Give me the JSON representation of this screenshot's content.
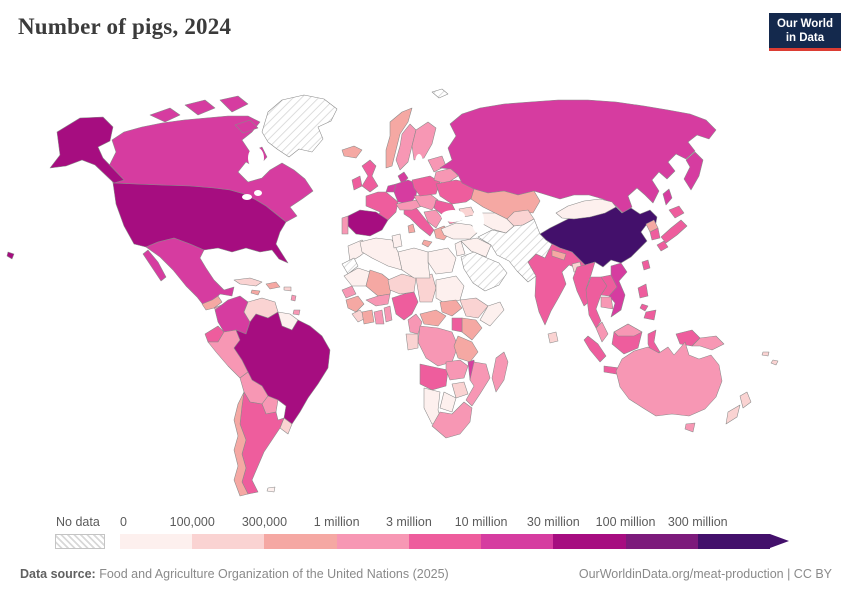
{
  "title": "Number of pigs, 2024",
  "logo": {
    "line1": "Our World",
    "line2": "in Data"
  },
  "legend": {
    "no_data_label": "No data",
    "ticks": [
      "0",
      "100,000",
      "300,000",
      "1 million",
      "3 million",
      "10 million",
      "30 million",
      "100 million",
      "300 million"
    ]
  },
  "footer": {
    "source_prefix": "Data source:",
    "source_text": " Food and Agriculture Organization of the United Nations (2025)",
    "link_text": "OurWorldinData.org/meat-production | CC BY"
  },
  "chart_data": {
    "type": "heatmap",
    "subtype": "world-choropleth",
    "title": "Number of pigs, 2024",
    "legend_position": "bottom",
    "bins": [
      {
        "key": "b1",
        "range": "0–100,000",
        "color": "#fdf0ee"
      },
      {
        "key": "b2",
        "range": "100,000–300,000",
        "color": "#fad3d2"
      },
      {
        "key": "b3",
        "range": "300,000–1 million",
        "color": "#f5a8a3"
      },
      {
        "key": "b4",
        "range": "1–3 million",
        "color": "#f797b4"
      },
      {
        "key": "b5",
        "range": "3–10 million",
        "color": "#ee5d9d"
      },
      {
        "key": "b6",
        "range": "10–30 million",
        "color": "#d63ca0"
      },
      {
        "key": "b7",
        "range": "30–100 million",
        "color": "#a60d80"
      },
      {
        "key": "b8",
        "range": "100–300 million",
        "color": "#7c1a7b"
      },
      {
        "key": "b9",
        "range": "300 million+",
        "color": "#43106b"
      },
      {
        "key": "nodata",
        "range": "No data",
        "color": "hatched"
      }
    ],
    "regions": {
      "greenland": "nodata",
      "canada": "b6",
      "usa": "b7",
      "mexico": "b6",
      "guatemala": "b3",
      "honduras-nicaragua": "b4",
      "costa-rica-panama": "b4",
      "cuba": "b2",
      "hispaniola": "b3",
      "jamaica": "b3",
      "puerto-rico": "b2",
      "lesser-antilles": "b4",
      "trinidad": "b4",
      "colombia": "b6",
      "venezuela": "b2",
      "guyanas": "b1",
      "ecuador": "b5",
      "peru": "b4",
      "brazil": "b7",
      "bolivia": "b4",
      "paraguay": "b4",
      "uruguay": "b2",
      "argentina": "b5",
      "chile": "b3",
      "falkland": "b1",
      "iceland": "b3",
      "uk": "b5",
      "ireland": "b5",
      "norway": "b3",
      "sweden": "b4",
      "finland": "b4",
      "denmark": "b6",
      "germany": "b6",
      "benelux": "b6",
      "france": "b5",
      "spain": "b7",
      "portugal": "b4",
      "italy": "b5",
      "sicily": "b3",
      "sardinia": "b3",
      "switzerland-austria": "b4",
      "czech-hungary": "b4",
      "poland": "b5",
      "baltics": "b4",
      "belarus": "b4",
      "ukraine": "b5",
      "romania": "b5",
      "balkans": "b4",
      "bulgaria": "b4",
      "greece": "b3",
      "svalbard": "nodata",
      "morocco": "b1",
      "western-sahara": "nodata",
      "mauritania": "b1",
      "mali": "b3",
      "senegal": "b4",
      "guinea": "b3",
      "sierra-liberia": "b2",
      "ivory-coast": "b3",
      "ghana": "b4",
      "togo-benin": "b4",
      "burkina-faso": "b4",
      "niger": "b2",
      "nigeria": "b5",
      "chad": "b2",
      "sudan": "b1",
      "egypt": "b1",
      "libya": "b1",
      "algeria": "b1",
      "tunisia": "b1",
      "cameroon": "b4",
      "central-african-republic": "b3",
      "south-sudan": "b3",
      "ethiopia": "b2",
      "somalia": "b1",
      "kenya": "b3",
      "uganda": "b5",
      "drc": "b4",
      "congo-gabon": "b2",
      "tanzania": "b3",
      "angola": "b5",
      "zambia": "b4",
      "malawi": "b6",
      "mozambique": "b4",
      "zimbabwe": "b2",
      "botswana": "b1",
      "namibia": "b1",
      "south-africa": "b4",
      "madagascar": "b4",
      "russia": "b6",
      "kazakhstan": "b3",
      "uzbek-turkmen": "b1",
      "kyrgyz-tajik": "b2",
      "caucasus": "b2",
      "turkey": "b1",
      "syria-iraq": "b1",
      "israel-jordan": "b1",
      "saudi-peninsula": "nodata",
      "iran-afghan-pak": "nodata",
      "india": "b5",
      "sri-lanka": "b2",
      "nepal": "b3",
      "bangladesh": "b2",
      "china": "b9",
      "mongolia": "b1",
      "north-korea": "b3",
      "south-korea": "b5",
      "japan": "b5",
      "taiwan": "b5",
      "myanmar": "b5",
      "thailand": "b5",
      "laos": "b5",
      "vietnam": "b6",
      "cambodia": "b4",
      "malaysia": "b4",
      "indonesia": "b5",
      "philippines": "b5",
      "timor": "b1",
      "australia": "b4",
      "papua-new-guinea": "b4",
      "new-zealand": "b2",
      "pacific-islands": "b2"
    }
  }
}
